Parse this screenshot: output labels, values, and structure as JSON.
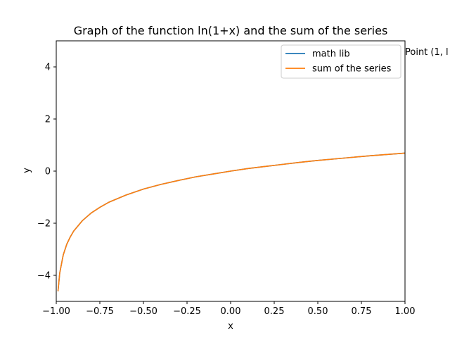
{
  "chart_data": {
    "type": "line",
    "title": "Graph of the function ln(1+x) and the sum of the series",
    "xlabel": "x",
    "ylabel": "y",
    "xlim": [
      -1.0,
      1.0
    ],
    "ylim": [
      -5,
      5
    ],
    "xticks": [
      -1.0,
      -0.75,
      -0.5,
      -0.25,
      0.0,
      0.25,
      0.5,
      0.75,
      1.0
    ],
    "xtick_labels": [
      "−1.00",
      "−0.75",
      "−0.50",
      "−0.25",
      "0.00",
      "0.25",
      "0.50",
      "0.75",
      "1.00"
    ],
    "yticks": [
      -4,
      -2,
      0,
      2,
      4
    ],
    "ytick_labels": [
      "−4",
      "−2",
      "0",
      "2",
      "4"
    ],
    "grid": false,
    "legend_position": "top-right",
    "series": [
      {
        "name": "math lib",
        "color": "#1f77b4",
        "x": [
          -0.99,
          -0.98,
          -0.96,
          -0.94,
          -0.92,
          -0.9,
          -0.85,
          -0.8,
          -0.75,
          -0.7,
          -0.6,
          -0.5,
          -0.4,
          -0.3,
          -0.2,
          -0.1,
          0.0,
          0.1,
          0.2,
          0.3,
          0.4,
          0.5,
          0.6,
          0.7,
          0.8,
          0.9,
          1.0
        ],
        "y": [
          -4.61,
          -3.91,
          -3.22,
          -2.81,
          -2.53,
          -2.3,
          -1.9,
          -1.61,
          -1.39,
          -1.2,
          -0.92,
          -0.69,
          -0.51,
          -0.36,
          -0.22,
          -0.11,
          0.0,
          0.1,
          0.18,
          0.26,
          0.34,
          0.41,
          0.47,
          0.53,
          0.59,
          0.64,
          0.69
        ]
      },
      {
        "name": "sum of the series",
        "color": "#ff7f0e",
        "x": [
          -0.99,
          -0.98,
          -0.96,
          -0.94,
          -0.92,
          -0.9,
          -0.85,
          -0.8,
          -0.75,
          -0.7,
          -0.6,
          -0.5,
          -0.4,
          -0.3,
          -0.2,
          -0.1,
          0.0,
          0.1,
          0.2,
          0.3,
          0.4,
          0.5,
          0.6,
          0.7,
          0.8,
          0.9,
          1.0
        ],
        "y": [
          -4.61,
          -3.91,
          -3.22,
          -2.81,
          -2.53,
          -2.3,
          -1.9,
          -1.61,
          -1.39,
          -1.2,
          -0.92,
          -0.69,
          -0.51,
          -0.36,
          -0.22,
          -0.11,
          0.0,
          0.1,
          0.18,
          0.26,
          0.34,
          0.41,
          0.47,
          0.53,
          0.59,
          0.64,
          0.69
        ]
      }
    ],
    "annotations": [
      {
        "text": "Point (1, l",
        "x": 1.0,
        "y": 4.5
      }
    ]
  }
}
